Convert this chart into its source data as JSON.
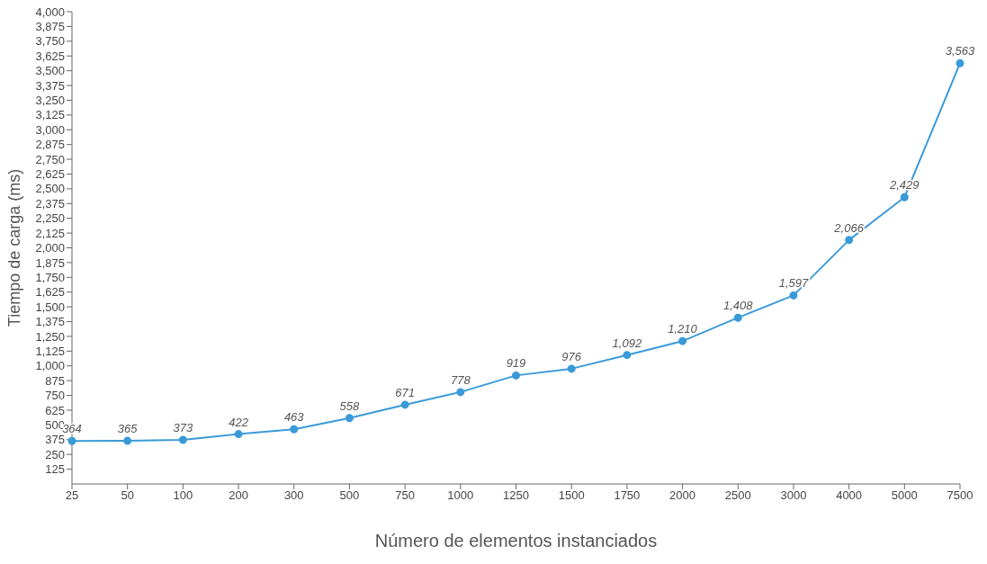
{
  "chart_data": {
    "type": "line",
    "xlabel": "Número de elementos instanciados",
    "ylabel": "Tiempo de carga (ms)",
    "categories": [
      "25",
      "50",
      "100",
      "200",
      "300",
      "500",
      "750",
      "1000",
      "1250",
      "1500",
      "1750",
      "2000",
      "2500",
      "3000",
      "4000",
      "5000",
      "7500"
    ],
    "series": [
      {
        "color": "#3a9ad9",
        "values": [
          364,
          365,
          373,
          422,
          463,
          558,
          671,
          778,
          919,
          976,
          1092,
          1210,
          1408,
          1597,
          2066,
          2429,
          3563
        ],
        "value_labels": [
          "364",
          "365",
          "373",
          "422",
          "463",
          "558",
          "671",
          "778",
          "919",
          "976",
          "1,092",
          "1,210",
          "1,408",
          "1,597",
          "2,066",
          "2,429",
          "3,563"
        ]
      }
    ],
    "ylim": [
      0,
      4000
    ],
    "yticks": [
      {
        "value": 125,
        "label": "125"
      },
      {
        "value": 250,
        "label": "250"
      },
      {
        "value": 375,
        "label": "375"
      },
      {
        "value": 500,
        "label": "500"
      },
      {
        "value": 625,
        "label": "625"
      },
      {
        "value": 750,
        "label": "750"
      },
      {
        "value": 875,
        "label": "875"
      },
      {
        "value": 1000,
        "label": "1,000"
      },
      {
        "value": 1125,
        "label": "1,125"
      },
      {
        "value": 1250,
        "label": "1,250"
      },
      {
        "value": 1375,
        "label": "1,375"
      },
      {
        "value": 1500,
        "label": "1,500"
      },
      {
        "value": 1625,
        "label": "1,625"
      },
      {
        "value": 1750,
        "label": "1,750"
      },
      {
        "value": 1875,
        "label": "1,875"
      },
      {
        "value": 2000,
        "label": "2,000"
      },
      {
        "value": 2125,
        "label": "2,125"
      },
      {
        "value": 2250,
        "label": "2,250"
      },
      {
        "value": 2375,
        "label": "2,375"
      },
      {
        "value": 2500,
        "label": "2,500"
      },
      {
        "value": 2625,
        "label": "2,625"
      },
      {
        "value": 2750,
        "label": "2,750"
      },
      {
        "value": 2875,
        "label": "2,875"
      },
      {
        "value": 3000,
        "label": "3,000"
      },
      {
        "value": 3125,
        "label": "3,125"
      },
      {
        "value": 3250,
        "label": "3,250"
      },
      {
        "value": 3375,
        "label": "3,375"
      },
      {
        "value": 3500,
        "label": "3,500"
      },
      {
        "value": 3625,
        "label": "3,625"
      },
      {
        "value": 3750,
        "label": "3,750"
      },
      {
        "value": 3875,
        "label": "3,875"
      },
      {
        "value": 4000,
        "label": "4,000"
      }
    ],
    "grid": false,
    "legend": false,
    "marker": "circle",
    "line_style": "solid"
  }
}
